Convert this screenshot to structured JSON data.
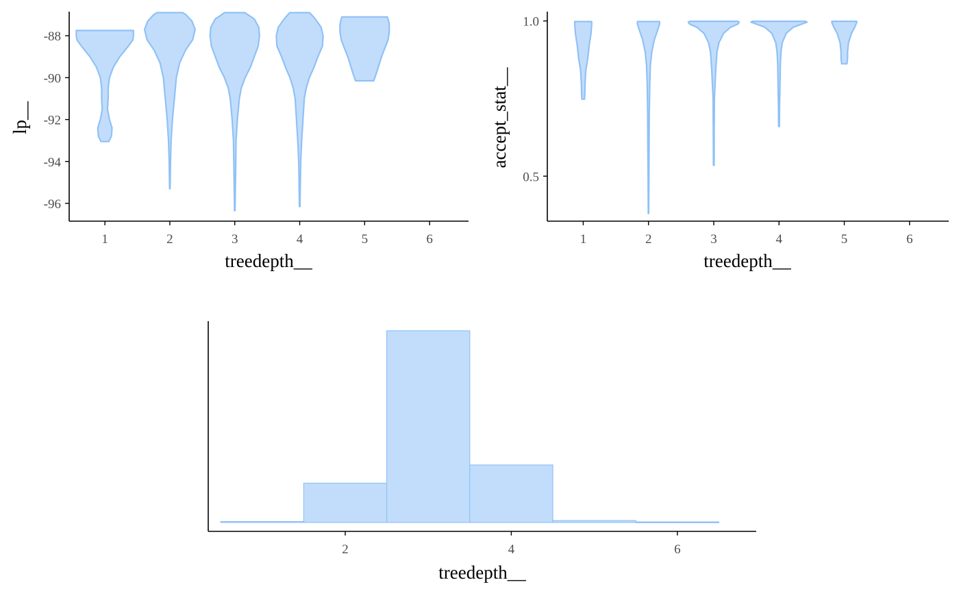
{
  "style": {
    "fill": "#c2ddfb",
    "stroke": "#90c1f6"
  },
  "chart_data": [
    {
      "type": "violin",
      "id": "lp",
      "xlabel": "treedepth__",
      "ylabel": "lp__",
      "xlim": [
        0.45,
        6.6
      ],
      "ylim": [
        -96.85,
        -86.85
      ],
      "x_ticks": [
        1,
        2,
        3,
        4,
        5,
        6
      ],
      "y_ticks": [
        -96,
        -94,
        -92,
        -90,
        -88
      ],
      "y_tick_labels": [
        "-96",
        "-94",
        "-92",
        "-90",
        "-88"
      ],
      "violins": [
        {
          "x": 1,
          "profile": [
            [
              -93.05,
              0.06
            ],
            [
              -92.8,
              0.1
            ],
            [
              -92.4,
              0.11
            ],
            [
              -92.0,
              0.07
            ],
            [
              -91.5,
              0.04
            ],
            [
              -91.0,
              0.05
            ],
            [
              -90.5,
              0.05
            ],
            [
              -90.0,
              0.07
            ],
            [
              -89.5,
              0.13
            ],
            [
              -89.0,
              0.23
            ],
            [
              -88.5,
              0.36
            ],
            [
              -88.2,
              0.43
            ],
            [
              -88.0,
              0.44
            ],
            [
              -87.9,
              0.44
            ],
            [
              -87.75,
              0.44
            ]
          ]
        },
        {
          "x": 2,
          "profile": [
            [
              -95.3,
              0.004
            ],
            [
              -94.0,
              0.01
            ],
            [
              -93.0,
              0.02
            ],
            [
              -92.0,
              0.04
            ],
            [
              -91.0,
              0.07
            ],
            [
              -90.0,
              0.1
            ],
            [
              -89.3,
              0.15
            ],
            [
              -88.7,
              0.24
            ],
            [
              -88.2,
              0.35
            ],
            [
              -87.7,
              0.39
            ],
            [
              -87.3,
              0.34
            ],
            [
              -87.0,
              0.25
            ],
            [
              -86.9,
              0.2
            ]
          ]
        },
        {
          "x": 3,
          "profile": [
            [
              -96.35,
              0.004
            ],
            [
              -95.0,
              0.01
            ],
            [
              -94.0,
              0.015
            ],
            [
              -93.0,
              0.02
            ],
            [
              -92.0,
              0.04
            ],
            [
              -91.0,
              0.07
            ],
            [
              -90.5,
              0.1
            ],
            [
              -90.0,
              0.16
            ],
            [
              -89.5,
              0.24
            ],
            [
              -89.0,
              0.3
            ],
            [
              -88.5,
              0.36
            ],
            [
              -88.0,
              0.38
            ],
            [
              -87.6,
              0.37
            ],
            [
              -87.2,
              0.3
            ],
            [
              -86.95,
              0.18
            ],
            [
              -86.9,
              0.16
            ]
          ]
        },
        {
          "x": 4,
          "profile": [
            [
              -96.15,
              0.004
            ],
            [
              -95.0,
              0.01
            ],
            [
              -94.0,
              0.015
            ],
            [
              -93.0,
              0.03
            ],
            [
              -92.0,
              0.05
            ],
            [
              -91.0,
              0.07
            ],
            [
              -90.5,
              0.1
            ],
            [
              -90.0,
              0.15
            ],
            [
              -89.5,
              0.22
            ],
            [
              -89.0,
              0.28
            ],
            [
              -88.5,
              0.35
            ],
            [
              -88.0,
              0.36
            ],
            [
              -87.6,
              0.33
            ],
            [
              -87.2,
              0.24
            ],
            [
              -86.95,
              0.17
            ],
            [
              -86.9,
              0.15
            ]
          ]
        },
        {
          "x": 5,
          "profile": [
            [
              -90.15,
              0.14
            ],
            [
              -89.8,
              0.18
            ],
            [
              -89.4,
              0.22
            ],
            [
              -89.0,
              0.26
            ],
            [
              -88.6,
              0.31
            ],
            [
              -88.2,
              0.36
            ],
            [
              -87.8,
              0.38
            ],
            [
              -87.5,
              0.38
            ],
            [
              -87.3,
              0.37
            ],
            [
              -87.1,
              0.35
            ]
          ]
        }
      ]
    },
    {
      "type": "violin",
      "id": "accept",
      "xlabel": "treedepth__",
      "ylabel": "accept_stat__",
      "xlim": [
        0.45,
        6.6
      ],
      "ylim": [
        0.355,
        1.03
      ],
      "x_ticks": [
        1,
        2,
        3,
        4,
        5,
        6
      ],
      "y_ticks": [
        0.5,
        1.0
      ],
      "y_tick_labels": [
        "0.5",
        "1.0"
      ],
      "violins": [
        {
          "x": 1,
          "profile": [
            [
              0.748,
              0.02
            ],
            [
              0.77,
              0.025
            ],
            [
              0.8,
              0.028
            ],
            [
              0.84,
              0.04
            ],
            [
              0.88,
              0.07
            ],
            [
              0.92,
              0.09
            ],
            [
              0.96,
              0.12
            ],
            [
              0.99,
              0.13
            ],
            [
              0.998,
              0.13
            ]
          ]
        },
        {
          "x": 2,
          "profile": [
            [
              0.38,
              0.003
            ],
            [
              0.5,
              0.006
            ],
            [
              0.6,
              0.01
            ],
            [
              0.7,
              0.012
            ],
            [
              0.8,
              0.02
            ],
            [
              0.86,
              0.03
            ],
            [
              0.9,
              0.05
            ],
            [
              0.94,
              0.09
            ],
            [
              0.97,
              0.14
            ],
            [
              0.99,
              0.17
            ],
            [
              0.998,
              0.17
            ]
          ]
        },
        {
          "x": 3,
          "profile": [
            [
              0.535,
              0.005
            ],
            [
              0.65,
              0.007
            ],
            [
              0.75,
              0.01
            ],
            [
              0.84,
              0.03
            ],
            [
              0.9,
              0.05
            ],
            [
              0.93,
              0.08
            ],
            [
              0.96,
              0.15
            ],
            [
              0.98,
              0.26
            ],
            [
              0.99,
              0.37
            ],
            [
              0.996,
              0.39
            ],
            [
              0.999,
              0.37
            ]
          ]
        },
        {
          "x": 4,
          "profile": [
            [
              0.66,
              0.006
            ],
            [
              0.72,
              0.008
            ],
            [
              0.8,
              0.015
            ],
            [
              0.86,
              0.02
            ],
            [
              0.9,
              0.03
            ],
            [
              0.93,
              0.05
            ],
            [
              0.96,
              0.11
            ],
            [
              0.98,
              0.22
            ],
            [
              0.99,
              0.35
            ],
            [
              0.996,
              0.43
            ],
            [
              0.999,
              0.41
            ]
          ]
        },
        {
          "x": 5,
          "profile": [
            [
              0.862,
              0.04
            ],
            [
              0.88,
              0.05
            ],
            [
              0.9,
              0.05
            ],
            [
              0.93,
              0.065
            ],
            [
              0.96,
              0.11
            ],
            [
              0.98,
              0.16
            ],
            [
              0.995,
              0.19
            ],
            [
              0.999,
              0.19
            ]
          ]
        }
      ]
    },
    {
      "type": "bar",
      "id": "hist",
      "xlabel": "treedepth__",
      "ylabel": "",
      "xlim": [
        0.35,
        6.95
      ],
      "ylim": [
        0,
        105
      ],
      "x_ticks": [
        2,
        4,
        6
      ],
      "categories": [
        1,
        2,
        3,
        4,
        5,
        6
      ],
      "values": [
        0.5,
        20.5,
        100,
        30,
        1,
        0.3
      ]
    }
  ]
}
